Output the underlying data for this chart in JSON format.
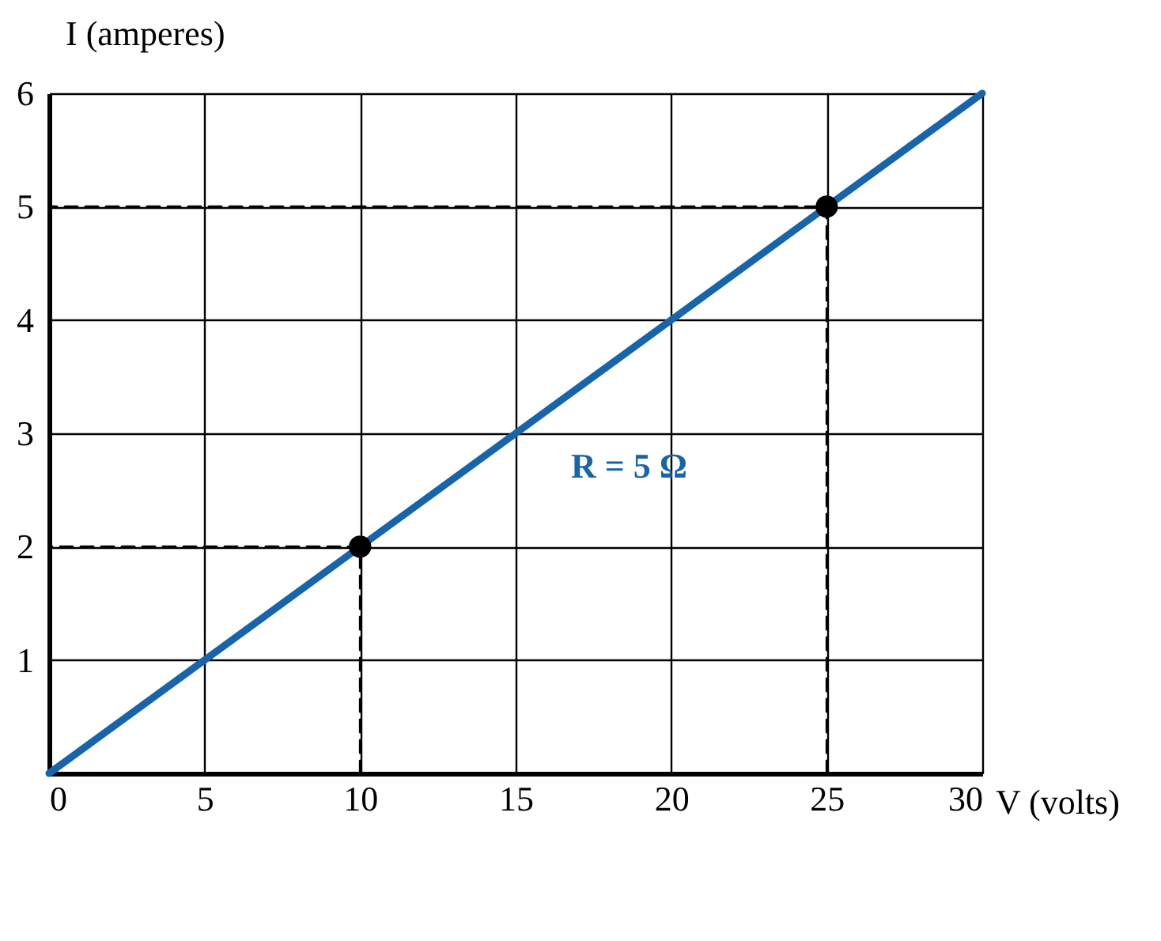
{
  "chart_data": {
    "type": "line",
    "xlabel": "V (volts)",
    "ylabel": "I (amperes)",
    "xlim": [
      0,
      30
    ],
    "ylim": [
      0,
      6
    ],
    "xticks": [
      0,
      5,
      10,
      15,
      20,
      25,
      30
    ],
    "yticks": [
      {
        "value": 0,
        "label": null
      },
      1,
      2,
      3,
      4,
      5,
      6
    ],
    "grid": true,
    "annotations": [
      "R = 5 Ω"
    ],
    "series": [
      {
        "color": "#1764ab",
        "x": [
          0,
          30
        ],
        "values": [
          0,
          6
        ]
      },
      {
        "type": "line",
        "color": "#000000",
        "line_style": "dashed",
        "x": [
          10,
          10,
          0
        ],
        "values": [
          0,
          2,
          2
        ]
      },
      {
        "type": "line",
        "color": "#000000",
        "line_style": "dashed",
        "x": [
          25,
          25,
          0
        ],
        "values": [
          0,
          5,
          5
        ]
      },
      {
        "type": "scatter",
        "color": "#000000",
        "marker": "circle",
        "x": [
          10,
          25
        ],
        "values": [
          2,
          5
        ]
      }
    ]
  }
}
